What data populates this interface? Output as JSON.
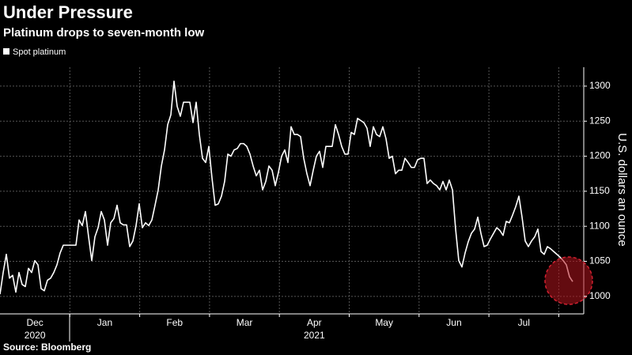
{
  "chart_data": {
    "type": "line",
    "title": "Under Pressure",
    "subtitle": "Platinum drops to seven-month low",
    "y_axis_label": "U.S. dollars an ounce",
    "source": "Source: Bloomberg",
    "months": [
      "Dec",
      "Jan",
      "Feb",
      "Mar",
      "Apr",
      "May",
      "Jun",
      "Jul"
    ],
    "years": [
      "2020",
      "2021"
    ],
    "series": [
      {
        "name": "Spot platinum",
        "color": "#ffffff",
        "values": [
          1003,
          1034,
          1060,
          1026,
          1030,
          1006,
          1034,
          1017,
          1014,
          1040,
          1034,
          1051,
          1045,
          1011,
          1008,
          1023,
          1026,
          1034,
          1045,
          1062,
          1073,
          1073,
          1073,
          1073,
          1073,
          1109,
          1101,
          1121,
          1085,
          1051,
          1085,
          1098,
          1121,
          1109,
          1073,
          1105,
          1111,
          1130,
          1105,
          1102,
          1102,
          1071,
          1079,
          1101,
          1132,
          1098,
          1105,
          1101,
          1109,
          1130,
          1152,
          1186,
          1209,
          1245,
          1259,
          1307,
          1271,
          1257,
          1277,
          1277,
          1277,
          1248,
          1277,
          1231,
          1197,
          1191,
          1214,
          1169,
          1130,
          1132,
          1143,
          1164,
          1203,
          1200,
          1209,
          1211,
          1218,
          1218,
          1214,
          1203,
          1186,
          1172,
          1180,
          1152,
          1164,
          1186,
          1180,
          1158,
          1177,
          1200,
          1209,
          1191,
          1242,
          1231,
          1231,
          1228,
          1197,
          1175,
          1158,
          1180,
          1200,
          1207,
          1184,
          1214,
          1214,
          1214,
          1245,
          1231,
          1214,
          1203,
          1203,
          1234,
          1231,
          1254,
          1251,
          1248,
          1240,
          1214,
          1242,
          1231,
          1228,
          1242,
          1225,
          1197,
          1200,
          1175,
          1180,
          1180,
          1197,
          1191,
          1184,
          1184,
          1195,
          1197,
          1197,
          1161,
          1166,
          1161,
          1158,
          1152,
          1164,
          1152,
          1166,
          1152,
          1096,
          1051,
          1042,
          1062,
          1078,
          1090,
          1096,
          1113,
          1090,
          1071,
          1073,
          1082,
          1090,
          1098,
          1094,
          1087,
          1107,
          1105,
          1116,
          1128,
          1143,
          1113,
          1079,
          1071,
          1079,
          1085,
          1096,
          1064,
          1060,
          1071,
          1068,
          1064,
          1060,
          1056,
          1051,
          1045,
          1028,
          1021
        ]
      }
    ],
    "ylim": [
      975,
      1327
    ],
    "yticks": [
      1000,
      1050,
      1100,
      1150,
      1200,
      1250,
      1300
    ],
    "grid": true
  }
}
